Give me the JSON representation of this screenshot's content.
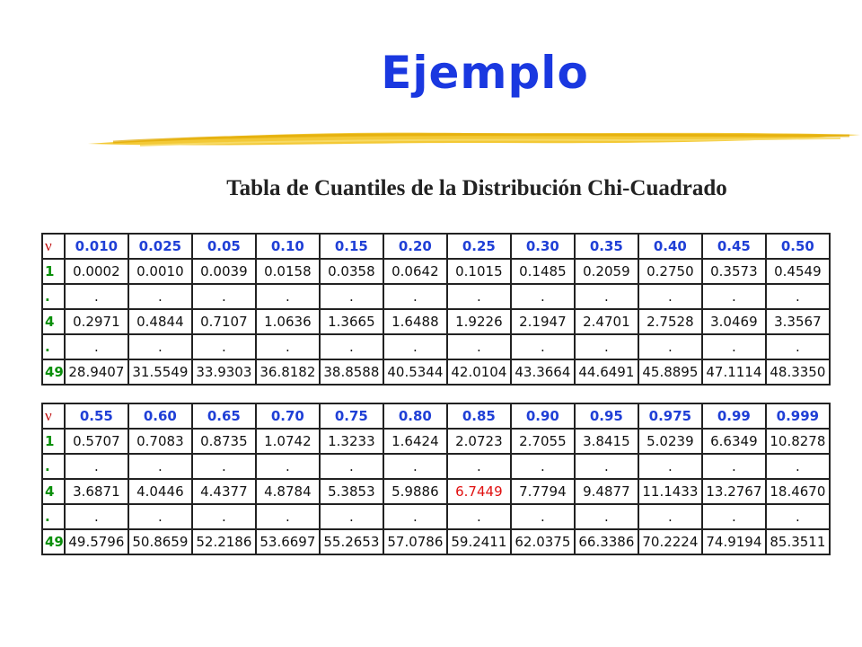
{
  "title": "Ejemplo",
  "subtitle": "Tabla de Cuantiles de la Distribución Chi-Cuadrado",
  "colors": {
    "title": "#1a38e0",
    "header": "#1f3fd6",
    "row_label": "#0a8f0a",
    "highlight": "#e01010",
    "brush": "#f2c320"
  },
  "tables": [
    {
      "corner": "ν",
      "headers": [
        "0.010",
        "0.025",
        "0.05",
        "0.10",
        "0.15",
        "0.20",
        "0.25",
        "0.30",
        "0.35",
        "0.40",
        "0.45",
        "0.50"
      ],
      "rows": [
        {
          "label": "1",
          "values": [
            "0.0002",
            "0.0010",
            "0.0039",
            "0.0158",
            "0.0358",
            "0.0642",
            "0.1015",
            "0.1485",
            "0.2059",
            "0.2750",
            "0.3573",
            "0.4549"
          ]
        },
        {
          "label": ".",
          "values": [
            ".",
            ".",
            ".",
            ".",
            ".",
            ".",
            ".",
            ".",
            ".",
            ".",
            ".",
            "."
          ]
        },
        {
          "label": "4",
          "values": [
            "0.2971",
            "0.4844",
            "0.7107",
            "1.0636",
            "1.3665",
            "1.6488",
            "1.9226",
            "2.1947",
            "2.4701",
            "2.7528",
            "3.0469",
            "3.3567"
          ]
        },
        {
          "label": ".",
          "values": [
            ".",
            ".",
            ".",
            ".",
            ".",
            ".",
            ".",
            ".",
            ".",
            ".",
            ".",
            "."
          ]
        },
        {
          "label": "49",
          "values": [
            "28.9407",
            "31.5549",
            "33.9303",
            "36.8182",
            "38.8588",
            "40.5344",
            "42.0104",
            "43.3664",
            "44.6491",
            "45.8895",
            "47.1114",
            "48.3350"
          ]
        }
      ]
    },
    {
      "corner": "ν",
      "headers": [
        "0.55",
        "0.60",
        "0.65",
        "0.70",
        "0.75",
        "0.80",
        "0.85",
        "0.90",
        "0.95",
        "0.975",
        "0.99",
        "0.999"
      ],
      "rows": [
        {
          "label": "1",
          "values": [
            "0.5707",
            "0.7083",
            "0.8735",
            "1.0742",
            "1.3233",
            "1.6424",
            "2.0723",
            "2.7055",
            "3.8415",
            "5.0239",
            "6.6349",
            "10.8278"
          ]
        },
        {
          "label": ".",
          "values": [
            ".",
            ".",
            ".",
            ".",
            ".",
            ".",
            ".",
            ".",
            ".",
            ".",
            ".",
            "."
          ]
        },
        {
          "label": "4",
          "values": [
            "3.6871",
            "4.0446",
            "4.4377",
            "4.8784",
            "5.3853",
            "5.9886",
            "6.7449",
            "7.7794",
            "9.4877",
            "11.1433",
            "13.2767",
            "18.4670"
          ],
          "highlight_col": 6
        },
        {
          "label": ".",
          "values": [
            ".",
            ".",
            ".",
            ".",
            ".",
            ".",
            ".",
            ".",
            ".",
            ".",
            ".",
            "."
          ]
        },
        {
          "label": "49",
          "values": [
            "49.5796",
            "50.8659",
            "52.2186",
            "53.6697",
            "55.2653",
            "57.0786",
            "59.2411",
            "62.0375",
            "66.3386",
            "70.2224",
            "74.9194",
            "85.3511"
          ]
        }
      ]
    }
  ]
}
